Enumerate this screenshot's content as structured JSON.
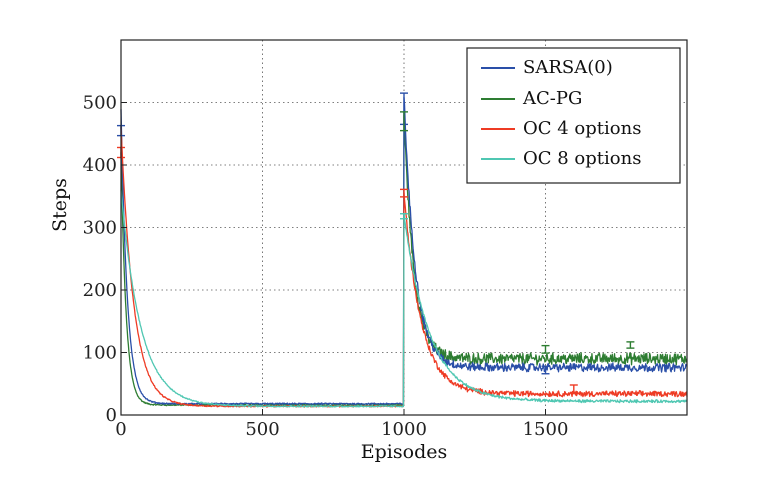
{
  "chart_data": {
    "type": "line",
    "xlabel": "Episodes",
    "ylabel": "Steps",
    "xlim": [
      0,
      2000
    ],
    "ylim": [
      0,
      600
    ],
    "xticks": [
      0,
      500,
      1000,
      1500
    ],
    "yticks": [
      0,
      100,
      200,
      300,
      400,
      500
    ],
    "grid": true,
    "legend_position": "top-right",
    "switch_episode": 1000,
    "series": [
      {
        "name": "SARSA(0)",
        "color": "#2a4fa8",
        "peak": 490,
        "decay1": 22,
        "plateau1": 18,
        "peak2": 510,
        "decay2": 40,
        "plateau2": 76,
        "noise": 6,
        "errorbars": [
          {
            "x": 0,
            "y": 455,
            "err": 8
          },
          {
            "x": 1000,
            "y": 490,
            "err": 25
          },
          {
            "x": 1500,
            "y": 72,
            "err": 6
          }
        ]
      },
      {
        "name": "AC-PG",
        "color": "#2e7d32",
        "peak": 420,
        "decay1": 18,
        "plateau1": 16,
        "peak2": 480,
        "decay2": 35,
        "plateau2": 90,
        "noise": 8,
        "errorbars": [
          {
            "x": 1000,
            "y": 470,
            "err": 15
          },
          {
            "x": 1500,
            "y": 105,
            "err": 6
          },
          {
            "x": 1800,
            "y": 112,
            "err": 5
          }
        ]
      },
      {
        "name": "OC 4 options",
        "color": "#ee3b24",
        "peak": 460,
        "decay1": 45,
        "plateau1": 14,
        "peak2": 355,
        "decay2": 60,
        "plateau2": 34,
        "noise": 4,
        "errorbars": [
          {
            "x": 0,
            "y": 420,
            "err": 8
          },
          {
            "x": 1000,
            "y": 355,
            "err": 6
          },
          {
            "x": 1600,
            "y": 42,
            "err": 6
          }
        ]
      },
      {
        "name": "OC 8 options",
        "color": "#4fc7b2",
        "peak": 360,
        "decay1": 70,
        "plateau1": 14,
        "peak2": 320,
        "decay2": 90,
        "plateau2": 22,
        "noise": 2,
        "errorbars": [
          {
            "x": 1000,
            "y": 318,
            "err": 4
          }
        ]
      }
    ]
  }
}
